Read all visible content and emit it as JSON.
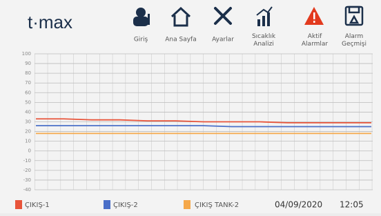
{
  "header": {
    "logo": "t·max",
    "nav": [
      {
        "label": "Giriş"
      },
      {
        "label": "Ana Sayfa"
      },
      {
        "label": "Ayarlar"
      },
      {
        "label": "Sıcaklık Analizi"
      },
      {
        "label": "Aktif Alarmlar"
      },
      {
        "label": "Alarm Geçmişi"
      }
    ]
  },
  "chart_data": {
    "type": "line",
    "categories": [
      null,
      null,
      null,
      null,
      null,
      null,
      null,
      null,
      null,
      null,
      null,
      null,
      null
    ],
    "series": [
      {
        "name": "ÇIKIŞ-1",
        "color": "#e8543a",
        "values": [
          33,
          33,
          32,
          32,
          31,
          31,
          30,
          30,
          30,
          29,
          29,
          29,
          29
        ]
      },
      {
        "name": "ÇIKIŞ-2",
        "color": "#4a6fc8",
        "values": [
          26,
          26,
          26,
          26,
          26,
          26,
          26,
          25,
          25,
          25,
          25,
          25,
          25
        ]
      },
      {
        "name": "ÇIKIŞ TANK-2",
        "color": "#f5a84a",
        "values": [
          18,
          18,
          18,
          18,
          18,
          18,
          18,
          18,
          18,
          18,
          18,
          18,
          18
        ]
      }
    ],
    "ylim": [
      -40,
      100
    ],
    "yticks": [
      -40,
      -30,
      -20,
      -10,
      0,
      10,
      20,
      30,
      40,
      50,
      60,
      70,
      80,
      90,
      100
    ],
    "grid": true
  },
  "footer": {
    "date": "04/09/2020",
    "time": "12:05"
  }
}
